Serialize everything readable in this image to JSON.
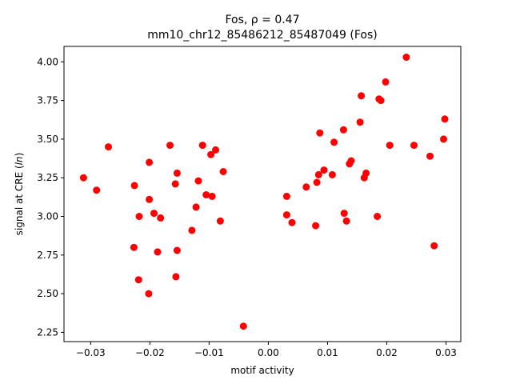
{
  "chart_data": {
    "type": "scatter",
    "title_line1": "Fos, ρ = 0.47",
    "title_line2": "mm10_chr12_85486212_85487049 (Fos)",
    "xlabel": "motif activity",
    "ylabel_prefix": "signal at CRE (",
    "ylabel_italic": "ln",
    "ylabel_suffix": ")",
    "xlim": [
      -0.0345,
      0.0325
    ],
    "ylim": [
      2.19,
      4.1
    ],
    "xticks": [
      -0.03,
      -0.02,
      -0.01,
      0.0,
      0.01,
      0.02,
      0.03
    ],
    "xtick_labels": [
      "−0.03",
      "−0.02",
      "−0.01",
      "0.00",
      "0.01",
      "0.02",
      "0.03"
    ],
    "yticks": [
      2.25,
      2.5,
      2.75,
      3.0,
      3.25,
      3.5,
      3.75,
      4.0
    ],
    "ytick_labels": [
      "2.25",
      "2.50",
      "2.75",
      "3.00",
      "3.25",
      "3.50",
      "3.75",
      "4.00"
    ],
    "grid": false,
    "marker_color": "#ff0000",
    "points": [
      {
        "x": -0.0312,
        "y": 3.25
      },
      {
        "x": -0.029,
        "y": 3.17
      },
      {
        "x": -0.027,
        "y": 3.45
      },
      {
        "x": -0.0226,
        "y": 3.2
      },
      {
        "x": -0.0227,
        "y": 2.8
      },
      {
        "x": -0.0219,
        "y": 2.59
      },
      {
        "x": -0.0218,
        "y": 3.0
      },
      {
        "x": -0.0201,
        "y": 3.35
      },
      {
        "x": -0.0201,
        "y": 3.11
      },
      {
        "x": -0.0202,
        "y": 2.5
      },
      {
        "x": -0.0193,
        "y": 3.02
      },
      {
        "x": -0.0187,
        "y": 2.77
      },
      {
        "x": -0.0182,
        "y": 2.99
      },
      {
        "x": -0.0166,
        "y": 3.46
      },
      {
        "x": -0.0157,
        "y": 3.21
      },
      {
        "x": -0.0154,
        "y": 3.28
      },
      {
        "x": -0.0154,
        "y": 2.78
      },
      {
        "x": -0.0156,
        "y": 2.61
      },
      {
        "x": -0.0129,
        "y": 2.91
      },
      {
        "x": -0.0122,
        "y": 3.06
      },
      {
        "x": -0.0118,
        "y": 3.23
      },
      {
        "x": -0.0111,
        "y": 3.46
      },
      {
        "x": -0.0105,
        "y": 3.14
      },
      {
        "x": -0.0097,
        "y": 3.4
      },
      {
        "x": -0.0095,
        "y": 3.13
      },
      {
        "x": -0.0089,
        "y": 3.43
      },
      {
        "x": -0.0081,
        "y": 2.97
      },
      {
        "x": -0.0076,
        "y": 3.29
      },
      {
        "x": -0.0042,
        "y": 2.29
      },
      {
        "x": 0.0031,
        "y": 3.13
      },
      {
        "x": 0.0031,
        "y": 3.01
      },
      {
        "x": 0.004,
        "y": 2.96
      },
      {
        "x": 0.0064,
        "y": 3.19
      },
      {
        "x": 0.008,
        "y": 2.94
      },
      {
        "x": 0.0082,
        "y": 3.22
      },
      {
        "x": 0.0085,
        "y": 3.27
      },
      {
        "x": 0.0087,
        "y": 3.54
      },
      {
        "x": 0.0094,
        "y": 3.3
      },
      {
        "x": 0.0108,
        "y": 3.27
      },
      {
        "x": 0.0111,
        "y": 3.48
      },
      {
        "x": 0.0127,
        "y": 3.56
      },
      {
        "x": 0.0128,
        "y": 3.02
      },
      {
        "x": 0.0132,
        "y": 2.97
      },
      {
        "x": 0.0137,
        "y": 3.34
      },
      {
        "x": 0.014,
        "y": 3.36
      },
      {
        "x": 0.0155,
        "y": 3.61
      },
      {
        "x": 0.0157,
        "y": 3.78
      },
      {
        "x": 0.0162,
        "y": 3.25
      },
      {
        "x": 0.0165,
        "y": 3.28
      },
      {
        "x": 0.0184,
        "y": 3.0
      },
      {
        "x": 0.0187,
        "y": 3.76
      },
      {
        "x": 0.019,
        "y": 3.75
      },
      {
        "x": 0.0198,
        "y": 3.87
      },
      {
        "x": 0.0205,
        "y": 3.46
      },
      {
        "x": 0.0233,
        "y": 4.03
      },
      {
        "x": 0.0246,
        "y": 3.46
      },
      {
        "x": 0.0273,
        "y": 3.39
      },
      {
        "x": 0.028,
        "y": 2.81
      },
      {
        "x": 0.0296,
        "y": 3.5
      },
      {
        "x": 0.0298,
        "y": 3.63
      }
    ]
  }
}
